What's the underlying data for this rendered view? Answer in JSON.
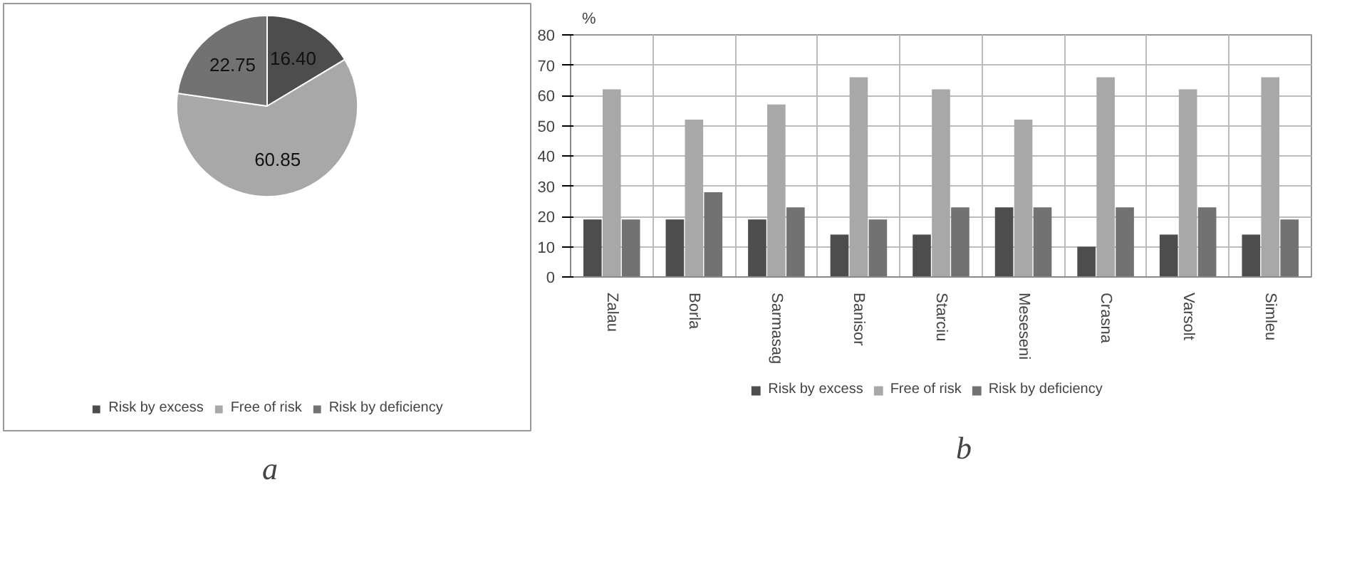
{
  "chart_data": [
    {
      "type": "pie",
      "categories": [
        "Risk by excess",
        "Free of risk",
        "Risk by deficiency"
      ],
      "values": [
        16.4,
        60.85,
        22.75
      ],
      "value_labels": [
        "16.40",
        "60.85",
        "22.75"
      ],
      "colors": [
        "#4d4d4d",
        "#a8a8a8",
        "#727272"
      ],
      "legend": "bottom",
      "annotations": [
        "a"
      ]
    },
    {
      "type": "bar",
      "ylabel": "%",
      "categories": [
        "Zalau",
        "Borla",
        "Sarmasag",
        "Banisor",
        "Starciu",
        "Meseseni",
        "Crasna",
        "Varsolt",
        "Simleu"
      ],
      "series": [
        {
          "name": "Risk by excess",
          "color": "#4d4d4d",
          "values": [
            19,
            19,
            19,
            14,
            14,
            23,
            10,
            14,
            14
          ]
        },
        {
          "name": "Free of risk",
          "color": "#a8a8a8",
          "values": [
            62,
            52,
            57,
            66,
            62,
            52,
            66,
            62,
            66
          ]
        },
        {
          "name": "Risk by deficiency",
          "color": "#727272",
          "values": [
            19,
            28,
            23,
            19,
            23,
            23,
            23,
            23,
            19
          ]
        }
      ],
      "ylim": [
        0,
        80
      ],
      "yticks": [
        0,
        10,
        20,
        30,
        40,
        50,
        60,
        70,
        80
      ],
      "grid": true,
      "legend": "bottom",
      "annotations": [
        "b"
      ]
    }
  ]
}
